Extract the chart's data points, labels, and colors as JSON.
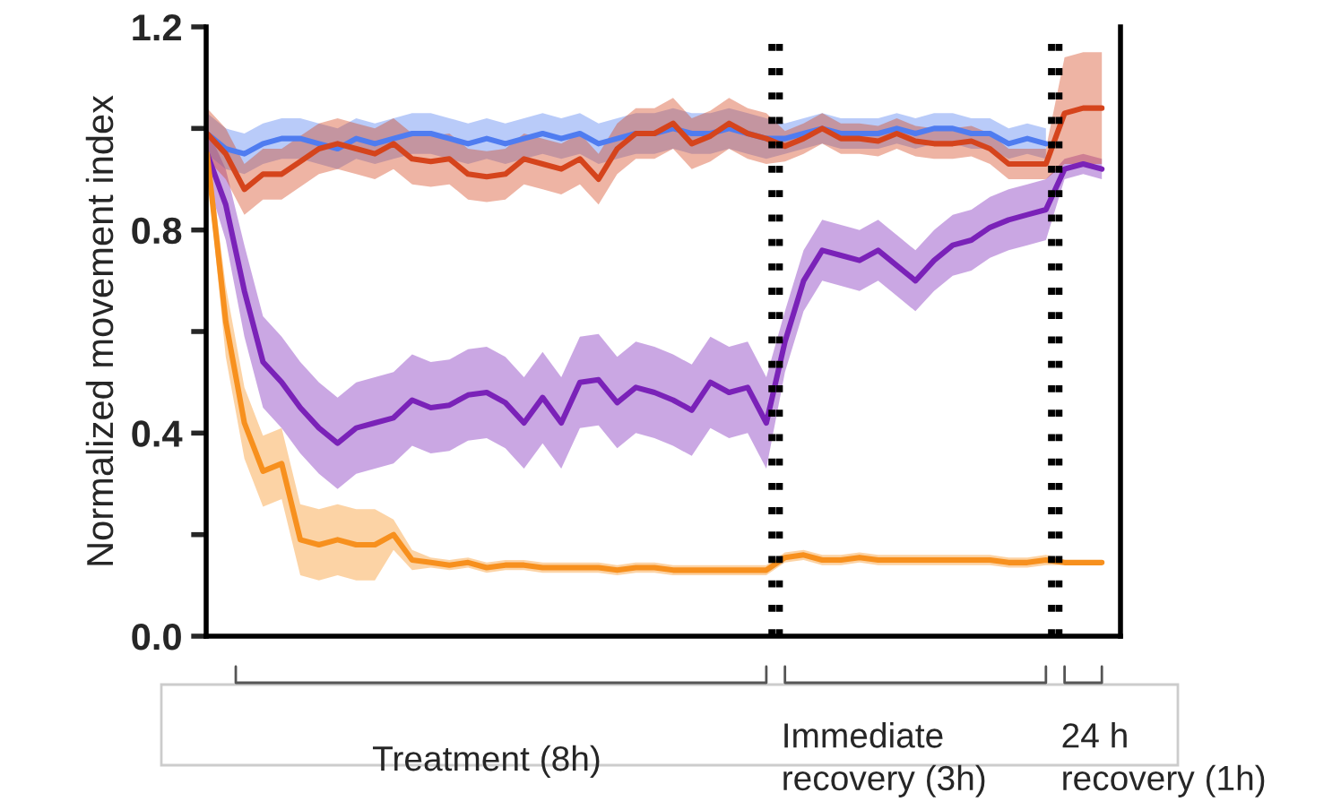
{
  "chart_data": {
    "type": "line",
    "ylabel": "Normalized movement index",
    "categories": [
      null,
      null,
      null,
      null,
      null,
      null,
      null,
      null,
      null,
      null,
      null,
      null,
      null,
      null,
      null,
      null,
      null,
      null,
      null,
      null,
      null,
      null,
      null,
      null,
      null,
      null,
      null,
      null,
      null,
      null,
      null,
      null,
      null,
      null,
      null,
      null,
      null,
      null,
      null,
      null,
      null,
      null,
      null,
      null,
      null,
      null,
      null,
      null,
      null
    ],
    "ylim": [
      0,
      1.2
    ],
    "yticks": [
      {
        "value": 0.0,
        "label": "0.0"
      },
      {
        "value": 0.2,
        "label": null
      },
      {
        "value": 0.4,
        "label": "0.4"
      },
      {
        "value": 0.6,
        "label": null
      },
      {
        "value": 0.8,
        "label": "0.8"
      },
      {
        "value": 1.0,
        "label": null
      },
      {
        "value": 1.2,
        "label": "1.2"
      }
    ],
    "tick_labels": "y",
    "line_style": "solid",
    "series": [
      {
        "color": "#7a22b8",
        "values": [
          0.95,
          0.85,
          0.68,
          0.54,
          0.5,
          0.45,
          0.41,
          0.38,
          0.41,
          0.42,
          0.43,
          0.465,
          0.45,
          0.455,
          0.475,
          0.48,
          0.46,
          0.42,
          0.47,
          0.42,
          0.5,
          0.505,
          0.46,
          0.49,
          0.48,
          0.465,
          0.445,
          0.5,
          0.48,
          0.49,
          0.42,
          0.58,
          0.7,
          0.76,
          0.75,
          0.74,
          0.76,
          0.73,
          0.7,
          0.74,
          0.77,
          0.78,
          0.805,
          0.82,
          0.83,
          0.84,
          0.92,
          0.93,
          0.92
        ],
        "lower": [
          0.9,
          0.78,
          0.59,
          0.45,
          0.41,
          0.36,
          0.32,
          0.29,
          0.32,
          0.33,
          0.34,
          0.375,
          0.36,
          0.365,
          0.385,
          0.39,
          0.37,
          0.33,
          0.38,
          0.33,
          0.41,
          0.415,
          0.37,
          0.4,
          0.39,
          0.375,
          0.355,
          0.41,
          0.39,
          0.4,
          0.33,
          0.52,
          0.64,
          0.7,
          0.69,
          0.68,
          0.7,
          0.67,
          0.64,
          0.68,
          0.71,
          0.72,
          0.745,
          0.76,
          0.77,
          0.78,
          0.9,
          0.91,
          0.9
        ],
        "upper": [
          1.0,
          0.92,
          0.77,
          0.63,
          0.59,
          0.54,
          0.5,
          0.47,
          0.5,
          0.51,
          0.52,
          0.555,
          0.54,
          0.545,
          0.565,
          0.57,
          0.55,
          0.51,
          0.56,
          0.51,
          0.59,
          0.595,
          0.55,
          0.58,
          0.57,
          0.555,
          0.535,
          0.59,
          0.57,
          0.58,
          0.51,
          0.64,
          0.76,
          0.82,
          0.81,
          0.8,
          0.82,
          0.79,
          0.76,
          0.8,
          0.83,
          0.84,
          0.865,
          0.88,
          0.89,
          0.9,
          0.94,
          0.95,
          0.94
        ]
      },
      {
        "color": "#f7901e",
        "values": [
          0.95,
          0.62,
          0.42,
          0.325,
          0.34,
          0.19,
          0.18,
          0.19,
          0.18,
          0.18,
          0.2,
          0.15,
          0.145,
          0.14,
          0.145,
          0.135,
          0.14,
          0.14,
          0.135,
          0.135,
          0.135,
          0.135,
          0.13,
          0.135,
          0.135,
          0.13,
          0.13,
          0.13,
          0.13,
          0.13,
          0.13,
          0.155,
          0.16,
          0.15,
          0.15,
          0.155,
          0.15,
          0.15,
          0.15,
          0.15,
          0.15,
          0.15,
          0.15,
          0.145,
          0.145,
          0.15,
          0.145,
          0.145,
          0.145
        ],
        "lower": [
          0.92,
          0.55,
          0.35,
          0.255,
          0.27,
          0.12,
          0.11,
          0.12,
          0.11,
          0.11,
          0.17,
          0.13,
          0.135,
          0.13,
          0.135,
          0.125,
          0.13,
          0.13,
          0.125,
          0.125,
          0.125,
          0.125,
          0.12,
          0.125,
          0.125,
          0.12,
          0.12,
          0.12,
          0.12,
          0.12,
          0.12,
          0.145,
          0.15,
          0.14,
          0.14,
          0.145,
          0.14,
          0.14,
          0.14,
          0.14,
          0.14,
          0.14,
          0.14,
          0.135,
          0.135,
          0.14,
          0.14,
          0.14,
          0.14
        ],
        "upper": [
          0.98,
          0.69,
          0.49,
          0.395,
          0.41,
          0.26,
          0.25,
          0.26,
          0.25,
          0.25,
          0.23,
          0.17,
          0.155,
          0.15,
          0.155,
          0.145,
          0.15,
          0.15,
          0.145,
          0.145,
          0.145,
          0.145,
          0.14,
          0.145,
          0.145,
          0.14,
          0.14,
          0.14,
          0.14,
          0.14,
          0.14,
          0.165,
          0.17,
          0.16,
          0.16,
          0.165,
          0.16,
          0.16,
          0.16,
          0.16,
          0.16,
          0.16,
          0.16,
          0.155,
          0.155,
          0.16,
          0.15,
          0.15,
          0.15
        ]
      },
      {
        "color": "#4f7cf0",
        "values": [
          0.99,
          0.96,
          0.95,
          0.97,
          0.98,
          0.98,
          0.97,
          0.96,
          0.98,
          0.97,
          0.98,
          0.99,
          0.99,
          0.98,
          0.97,
          0.98,
          0.97,
          0.98,
          0.99,
          0.98,
          0.99,
          0.97,
          0.98,
          0.99,
          0.99,
          1.0,
          0.99,
          0.99,
          1.0,
          0.99,
          0.98,
          0.98,
          0.99,
          1.0,
          0.99,
          0.99,
          0.99,
          1.0,
          0.99,
          1.0,
          1.0,
          0.99,
          0.99,
          0.97,
          0.98,
          0.97,
          null,
          null,
          null
        ],
        "lower": [
          0.95,
          0.92,
          0.91,
          0.93,
          0.94,
          0.94,
          0.93,
          0.92,
          0.94,
          0.93,
          0.94,
          0.95,
          0.95,
          0.94,
          0.93,
          0.94,
          0.93,
          0.94,
          0.95,
          0.94,
          0.95,
          0.93,
          0.94,
          0.95,
          0.95,
          0.96,
          0.95,
          0.95,
          0.96,
          0.95,
          0.94,
          0.95,
          0.96,
          0.97,
          0.96,
          0.96,
          0.96,
          0.97,
          0.96,
          0.97,
          0.97,
          0.96,
          0.96,
          0.94,
          0.95,
          0.94,
          null,
          null,
          null
        ],
        "upper": [
          1.03,
          1.0,
          0.99,
          1.01,
          1.02,
          1.02,
          1.01,
          1.0,
          1.02,
          1.01,
          1.02,
          1.03,
          1.03,
          1.02,
          1.01,
          1.02,
          1.01,
          1.02,
          1.03,
          1.02,
          1.03,
          1.01,
          1.02,
          1.03,
          1.03,
          1.04,
          1.03,
          1.03,
          1.04,
          1.03,
          1.02,
          1.01,
          1.02,
          1.03,
          1.02,
          1.02,
          1.02,
          1.03,
          1.02,
          1.03,
          1.03,
          1.02,
          1.02,
          1.0,
          1.01,
          1.0,
          null,
          null,
          null
        ]
      },
      {
        "color": "#d5441c",
        "values": [
          0.99,
          0.95,
          0.88,
          0.91,
          0.91,
          0.935,
          0.96,
          0.97,
          0.96,
          0.95,
          0.97,
          0.94,
          0.935,
          0.94,
          0.91,
          0.905,
          0.91,
          0.94,
          0.93,
          0.92,
          0.94,
          0.9,
          0.96,
          0.99,
          0.99,
          1.01,
          0.97,
          0.985,
          1.01,
          0.99,
          0.98,
          0.965,
          0.98,
          1.0,
          0.98,
          0.98,
          0.975,
          0.99,
          0.975,
          0.97,
          0.97,
          0.975,
          0.96,
          0.93,
          0.93,
          0.93,
          1.03,
          1.04,
          1.04
        ],
        "lower": [
          0.94,
          0.9,
          0.83,
          0.86,
          0.86,
          0.885,
          0.91,
          0.92,
          0.91,
          0.9,
          0.92,
          0.89,
          0.885,
          0.89,
          0.86,
          0.855,
          0.86,
          0.89,
          0.88,
          0.87,
          0.89,
          0.85,
          0.91,
          0.94,
          0.94,
          0.96,
          0.92,
          0.935,
          0.96,
          0.94,
          0.93,
          0.935,
          0.95,
          0.97,
          0.95,
          0.95,
          0.945,
          0.96,
          0.945,
          0.94,
          0.94,
          0.945,
          0.93,
          0.9,
          0.9,
          0.9,
          0.93,
          0.93,
          0.93
        ],
        "upper": [
          1.04,
          1.0,
          0.93,
          0.96,
          0.96,
          0.985,
          1.01,
          1.02,
          1.01,
          1.0,
          1.02,
          0.99,
          0.985,
          0.99,
          0.96,
          0.955,
          0.96,
          0.99,
          0.98,
          0.97,
          0.99,
          0.95,
          1.01,
          1.04,
          1.04,
          1.06,
          1.02,
          1.035,
          1.06,
          1.04,
          1.03,
          0.995,
          1.01,
          1.03,
          1.01,
          1.01,
          1.005,
          1.02,
          1.005,
          1.0,
          1.0,
          1.005,
          0.99,
          0.96,
          0.96,
          0.96,
          1.14,
          1.15,
          1.15
        ]
      }
    ],
    "annotations": [
      "Treatment (8h)",
      "Immediate\nrecovery (3h)",
      "24 h\nrecovery (1h)"
    ]
  }
}
